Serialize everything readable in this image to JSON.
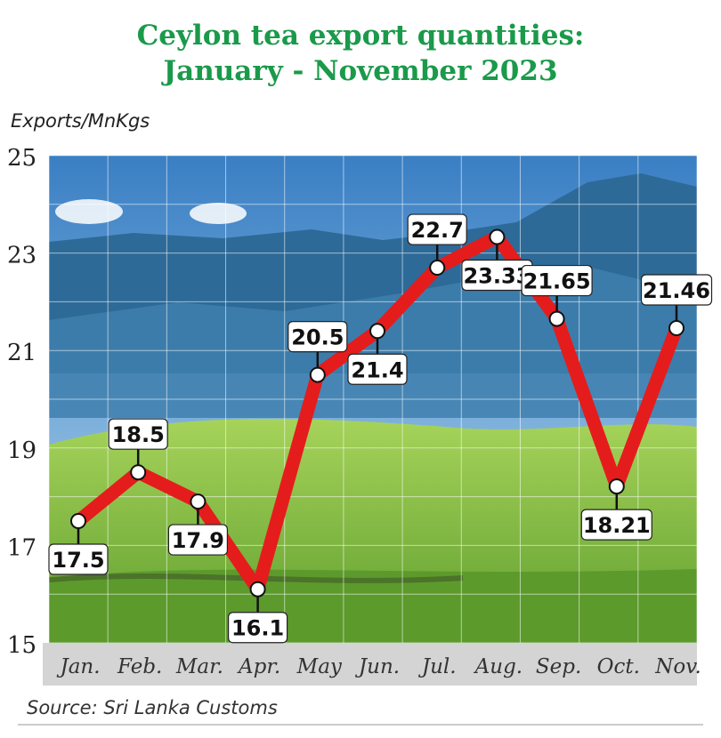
{
  "colors": {
    "title": "#1a9a4a",
    "line": "#e51c1c",
    "sky_top": "#3e86c8",
    "sky_bottom": "#a9d0ea",
    "mountain": "#2f6f9a",
    "hill": "#6da83a",
    "tea": "#8cc84a",
    "axis_band": "#d4d4d4"
  },
  "chart_data": {
    "type": "line",
    "title": "Ceylon tea export quantities:",
    "subtitle": "January - November 2023",
    "ylabel": "Exports/MnKgs",
    "xlabel": "",
    "categories": [
      "Jan.",
      "Feb.",
      "Mar.",
      "Apr.",
      "May",
      "Jun.",
      "Jul.",
      "Aug.",
      "Sep.",
      "Oct.",
      "Nov."
    ],
    "series": [
      {
        "values": [
          17.5,
          18.5,
          17.9,
          16.1,
          20.5,
          21.4,
          22.7,
          23.33,
          21.65,
          18.21,
          21.46
        ],
        "labels": [
          "17.5",
          "18.5",
          "17.9",
          "16.1",
          "20.5",
          "21.4",
          "22.7",
          "23.33",
          "21.65",
          "18.21",
          "21.46"
        ]
      }
    ],
    "yticks": [
      "25",
      "23",
      "21",
      "19",
      "17",
      "15"
    ],
    "ylim": [
      15,
      25
    ],
    "grid": true,
    "source": "Source: Sri Lanka Customs"
  }
}
